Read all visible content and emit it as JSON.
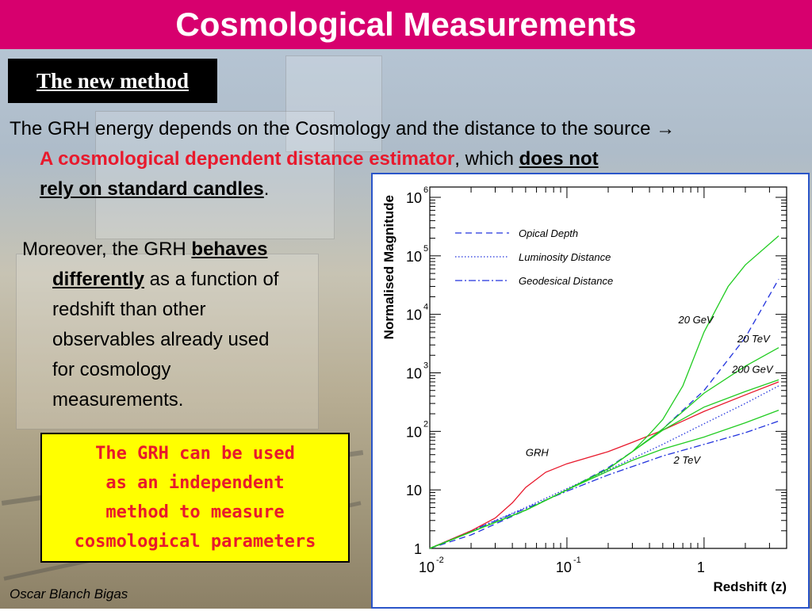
{
  "slide": {
    "title": "Cosmological Measurements",
    "section_label": "The new method",
    "author": "Oscar Blanch Bigas"
  },
  "body": {
    "p1_text": "The GRH energy depends on the Cosmology and the distance to the source",
    "p1_arrow": "→",
    "p1_red": "A cosmological dependent distance estimator",
    "p1_which": ", which ",
    "p1_does_not": "does not",
    "p1_rely": "rely on standard candles",
    "p1_period": ".",
    "p2_lead": "Moreover, the GRH ",
    "p2_behaves": "behaves",
    "p2_differently": "differently",
    "p2_rest1": " as a function of",
    "p2_line3": "redshift than other",
    "p2_line4": "observables already used",
    "p2_line5": "for cosmology",
    "p2_line6": "measurements.",
    "callout_lines": [
      "The GRH can be used",
      "as an independent",
      "method to measure",
      "cosmological parameters"
    ]
  },
  "colors": {
    "title_bar": "#d7006e",
    "accent_red": "#e8192c",
    "callout_bg": "#ffff00",
    "chart_border": "#2a55c9",
    "grh_line": "#e8192c",
    "energy_lines": "#22cc22",
    "cosmo_lines": "#2233dd"
  },
  "chart_data": {
    "type": "line",
    "xlabel": "Redshift (z)",
    "ylabel": "Normalised Magnitude",
    "x_scale": "log",
    "y_scale": "log",
    "xlim": [
      0.01,
      4
    ],
    "ylim": [
      1,
      1500000
    ],
    "x_ticks": [
      {
        "value": 0.01,
        "base": "10",
        "exp": "-2"
      },
      {
        "value": 0.1,
        "base": "10",
        "exp": "-1"
      },
      {
        "value": 1,
        "base": "1",
        "exp": ""
      }
    ],
    "y_ticks": [
      {
        "value": 1,
        "base": "1",
        "exp": ""
      },
      {
        "value": 10,
        "base": "10",
        "exp": ""
      },
      {
        "value": 100,
        "base": "10",
        "exp": "2"
      },
      {
        "value": 1000,
        "base": "10",
        "exp": "3"
      },
      {
        "value": 10000,
        "base": "10",
        "exp": "4"
      },
      {
        "value": 100000,
        "base": "10",
        "exp": "5"
      },
      {
        "value": 1000000,
        "base": "10",
        "exp": "6"
      }
    ],
    "legend": {
      "position": "top-left",
      "entries": [
        {
          "name": "Opical Depth",
          "style": "dashed"
        },
        {
          "name": "Luminosity Distance",
          "style": "dotted"
        },
        {
          "name": "Geodesical Distance",
          "style": "dashdot"
        }
      ]
    },
    "series": [
      {
        "name": "Opical Depth",
        "style": "dashed",
        "color": "#2233dd",
        "points": [
          [
            0.01,
            1
          ],
          [
            0.02,
            1.7
          ],
          [
            0.05,
            4.5
          ],
          [
            0.1,
            10
          ],
          [
            0.2,
            24
          ],
          [
            0.3,
            45
          ],
          [
            0.5,
            110
          ],
          [
            1,
            500
          ],
          [
            2,
            4000
          ],
          [
            3.5,
            40000
          ]
        ]
      },
      {
        "name": "Luminosity Distance",
        "style": "dotted",
        "color": "#2233dd",
        "points": [
          [
            0.01,
            1
          ],
          [
            0.02,
            2
          ],
          [
            0.05,
            5
          ],
          [
            0.1,
            10.5
          ],
          [
            0.2,
            22
          ],
          [
            0.5,
            60
          ],
          [
            1,
            135
          ],
          [
            2,
            300
          ],
          [
            3.5,
            600
          ]
        ]
      },
      {
        "name": "Geodesical Distance",
        "style": "dashdot",
        "color": "#2233dd",
        "points": [
          [
            0.01,
            1
          ],
          [
            0.02,
            2
          ],
          [
            0.05,
            4.8
          ],
          [
            0.1,
            9.5
          ],
          [
            0.2,
            18
          ],
          [
            0.5,
            38
          ],
          [
            1,
            60
          ],
          [
            2,
            95
          ],
          [
            3.5,
            150
          ]
        ]
      },
      {
        "name": "GRH",
        "style": "solid",
        "color": "#e8192c",
        "points": [
          [
            0.01,
            1
          ],
          [
            0.02,
            2
          ],
          [
            0.03,
            3.3
          ],
          [
            0.04,
            6
          ],
          [
            0.05,
            11
          ],
          [
            0.07,
            20
          ],
          [
            0.1,
            28
          ],
          [
            0.2,
            45
          ],
          [
            0.3,
            65
          ],
          [
            0.5,
            105
          ],
          [
            0.7,
            150
          ],
          [
            1,
            220
          ],
          [
            2,
            420
          ],
          [
            3.5,
            700
          ]
        ]
      },
      {
        "name": "20 GeV",
        "style": "solid",
        "color": "#22cc22",
        "points": [
          [
            0.01,
            1
          ],
          [
            0.05,
            4.5
          ],
          [
            0.1,
            10
          ],
          [
            0.2,
            23
          ],
          [
            0.3,
            45
          ],
          [
            0.4,
            90
          ],
          [
            0.5,
            160
          ],
          [
            0.7,
            600
          ],
          [
            1,
            5000
          ],
          [
            1.5,
            30000
          ],
          [
            2,
            70000
          ],
          [
            3.5,
            220000
          ]
        ]
      },
      {
        "name": "20 TeV",
        "style": "solid",
        "color": "#22cc22",
        "points": [
          [
            0.01,
            1
          ],
          [
            0.05,
            4.5
          ],
          [
            0.1,
            10
          ],
          [
            0.2,
            23
          ],
          [
            0.3,
            45
          ],
          [
            0.5,
            110
          ],
          [
            1,
            450
          ],
          [
            2,
            1300
          ],
          [
            3.5,
            2700
          ]
        ]
      },
      {
        "name": "200 GeV",
        "style": "solid",
        "color": "#22cc22",
        "points": [
          [
            0.01,
            1
          ],
          [
            0.05,
            4.5
          ],
          [
            0.1,
            10
          ],
          [
            0.2,
            23
          ],
          [
            0.3,
            45
          ],
          [
            0.5,
            105
          ],
          [
            1,
            260
          ],
          [
            2,
            480
          ],
          [
            3.5,
            760
          ]
        ]
      },
      {
        "name": "2 TeV",
        "style": "solid",
        "color": "#22cc22",
        "points": [
          [
            0.01,
            1
          ],
          [
            0.05,
            4.5
          ],
          [
            0.1,
            10
          ],
          [
            0.2,
            21
          ],
          [
            0.3,
            32
          ],
          [
            0.5,
            50
          ],
          [
            1,
            80
          ],
          [
            2,
            140
          ],
          [
            3.5,
            230
          ]
        ]
      }
    ],
    "annotations": [
      {
        "text": "20 GeV",
        "x": 0.65,
        "y": 7000
      },
      {
        "text": "20 TeV",
        "x": 1.75,
        "y": 3300
      },
      {
        "text": "200 GeV",
        "x": 1.6,
        "y": 1000
      },
      {
        "text": "GRH",
        "x": 0.05,
        "y": 38
      },
      {
        "text": "2 TeV",
        "x": 0.6,
        "y": 28
      }
    ]
  }
}
